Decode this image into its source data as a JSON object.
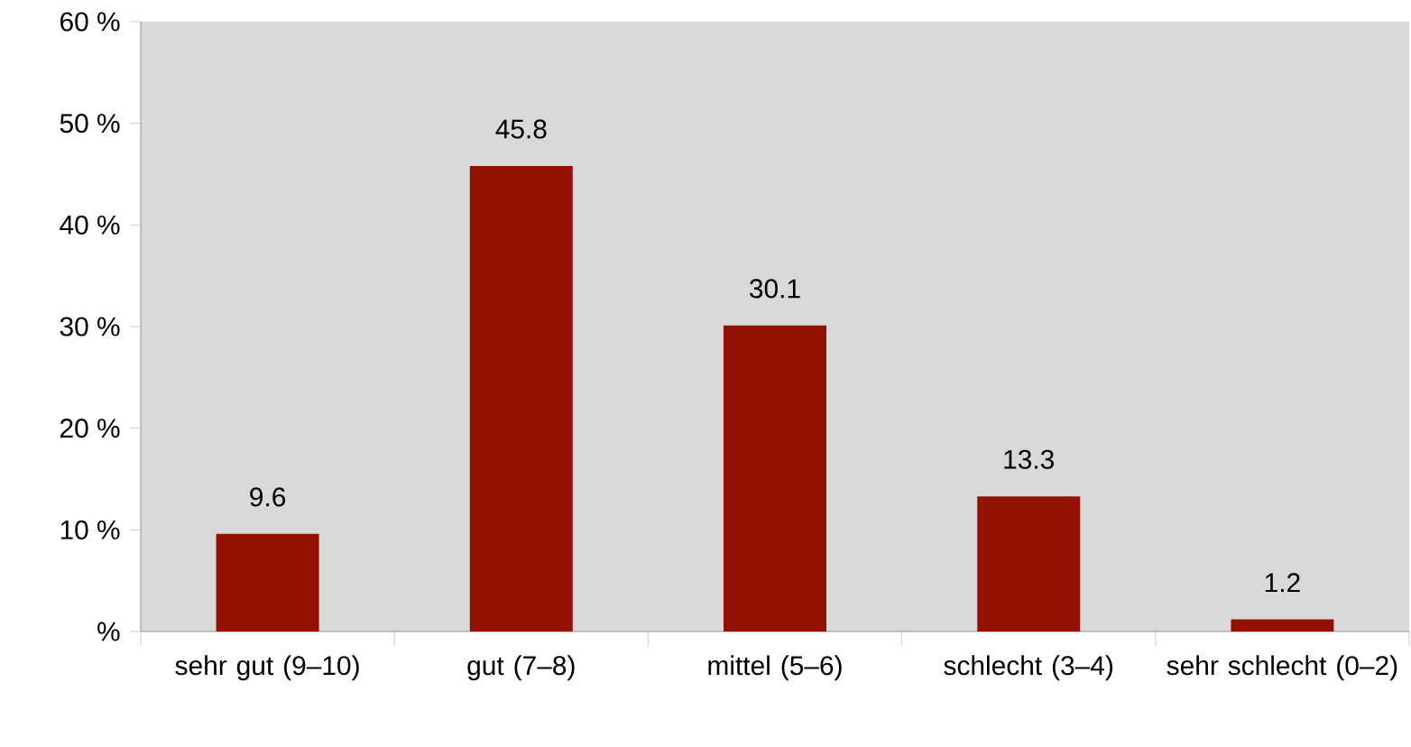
{
  "chart_data": {
    "type": "bar",
    "categories": [
      "sehr gut (9–10)",
      "gut (7–8)",
      "mittel (5–6)",
      "schlecht (3–4)",
      "sehr schlecht (0–2)"
    ],
    "values": [
      9.6,
      45.8,
      30.1,
      13.3,
      1.2
    ],
    "color": "#931100",
    "ylim": [
      0,
      60
    ],
    "yticks": [
      {
        "value": 0,
        "label": "%"
      },
      {
        "value": 10,
        "label": "10 %"
      },
      {
        "value": 20,
        "label": "20 %"
      },
      {
        "value": 30,
        "label": "30 %"
      },
      {
        "value": 40,
        "label": "40 %"
      },
      {
        "value": 50,
        "label": "50 %"
      },
      {
        "value": 60,
        "label": "60 %"
      }
    ],
    "data_labels": true
  }
}
